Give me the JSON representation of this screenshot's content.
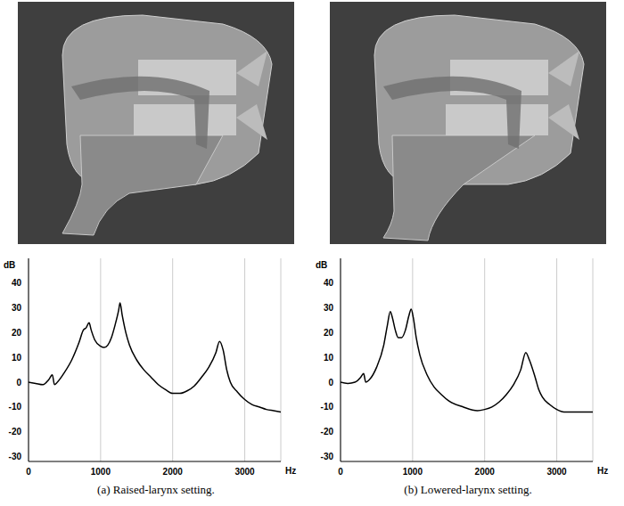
{
  "chart_data": [
    {
      "type": "line",
      "title": "(a) Raised-larynx setting.",
      "x_label": "Hz",
      "y_label": "dB",
      "x": [
        0,
        100,
        200,
        280,
        330,
        360,
        400,
        500,
        600,
        700,
        760,
        800,
        840,
        870,
        920,
        1000,
        1050,
        1100,
        1150,
        1200,
        1250,
        1270,
        1300,
        1350,
        1400,
        1500,
        1600,
        1700,
        1800,
        1900,
        2000,
        2100,
        2200,
        2300,
        2400,
        2500,
        2600,
        2650,
        2700,
        2750,
        2800,
        2900,
        3000,
        3100,
        3200,
        3300,
        3400,
        3500
      ],
      "values": [
        0,
        -0.5,
        -1,
        1,
        3,
        -1,
        0,
        4,
        9,
        16,
        21,
        22,
        24,
        21,
        17,
        14.5,
        14,
        15,
        18,
        23,
        29,
        32,
        27,
        20,
        15,
        9,
        5,
        2,
        -1,
        -3,
        -4.5,
        -4.5,
        -3.5,
        -1.5,
        2,
        6,
        12,
        16.5,
        13,
        5,
        0,
        -4,
        -7,
        -9,
        -10,
        -11,
        -11.5,
        -12
      ],
      "color": "#000000",
      "xlim": [
        0,
        3500
      ],
      "xticks": [
        0,
        1000,
        2000,
        3000
      ],
      "ylim": [
        -32,
        50
      ],
      "yticks": [
        -30,
        -20,
        -10,
        0,
        10,
        20,
        30,
        40
      ],
      "grid": "x"
    },
    {
      "type": "line",
      "title": "(b) Lowered-larynx setting.",
      "x_label": "Hz",
      "y_label": "dB",
      "x": [
        0,
        100,
        200,
        280,
        320,
        350,
        400,
        500,
        600,
        650,
        690,
        720,
        760,
        800,
        850,
        900,
        950,
        980,
        1010,
        1050,
        1100,
        1200,
        1300,
        1400,
        1500,
        1700,
        1900,
        2000,
        2100,
        2200,
        2300,
        2400,
        2500,
        2570,
        2620,
        2700,
        2750,
        2800,
        2900,
        3000,
        3100,
        3300,
        3500
      ],
      "values": [
        0,
        -0.5,
        0,
        2,
        3.5,
        0,
        1,
        6,
        15,
        23,
        28.5,
        26,
        21,
        18,
        18,
        21,
        27,
        29.5,
        26,
        18,
        11,
        3,
        -2,
        -5,
        -7.5,
        -10,
        -11.5,
        -11,
        -10,
        -8,
        -5,
        -1,
        5,
        12,
        9,
        2,
        -3,
        -6,
        -9,
        -11,
        -12,
        -12,
        -12
      ],
      "color": "#000000",
      "xlim": [
        0,
        3500
      ],
      "xticks": [
        0,
        1000,
        2000,
        3000
      ],
      "ylim": [
        -32,
        50
      ],
      "yticks": [
        -30,
        -20,
        -10,
        0,
        10,
        20,
        30,
        40
      ],
      "grid": "x"
    }
  ]
}
